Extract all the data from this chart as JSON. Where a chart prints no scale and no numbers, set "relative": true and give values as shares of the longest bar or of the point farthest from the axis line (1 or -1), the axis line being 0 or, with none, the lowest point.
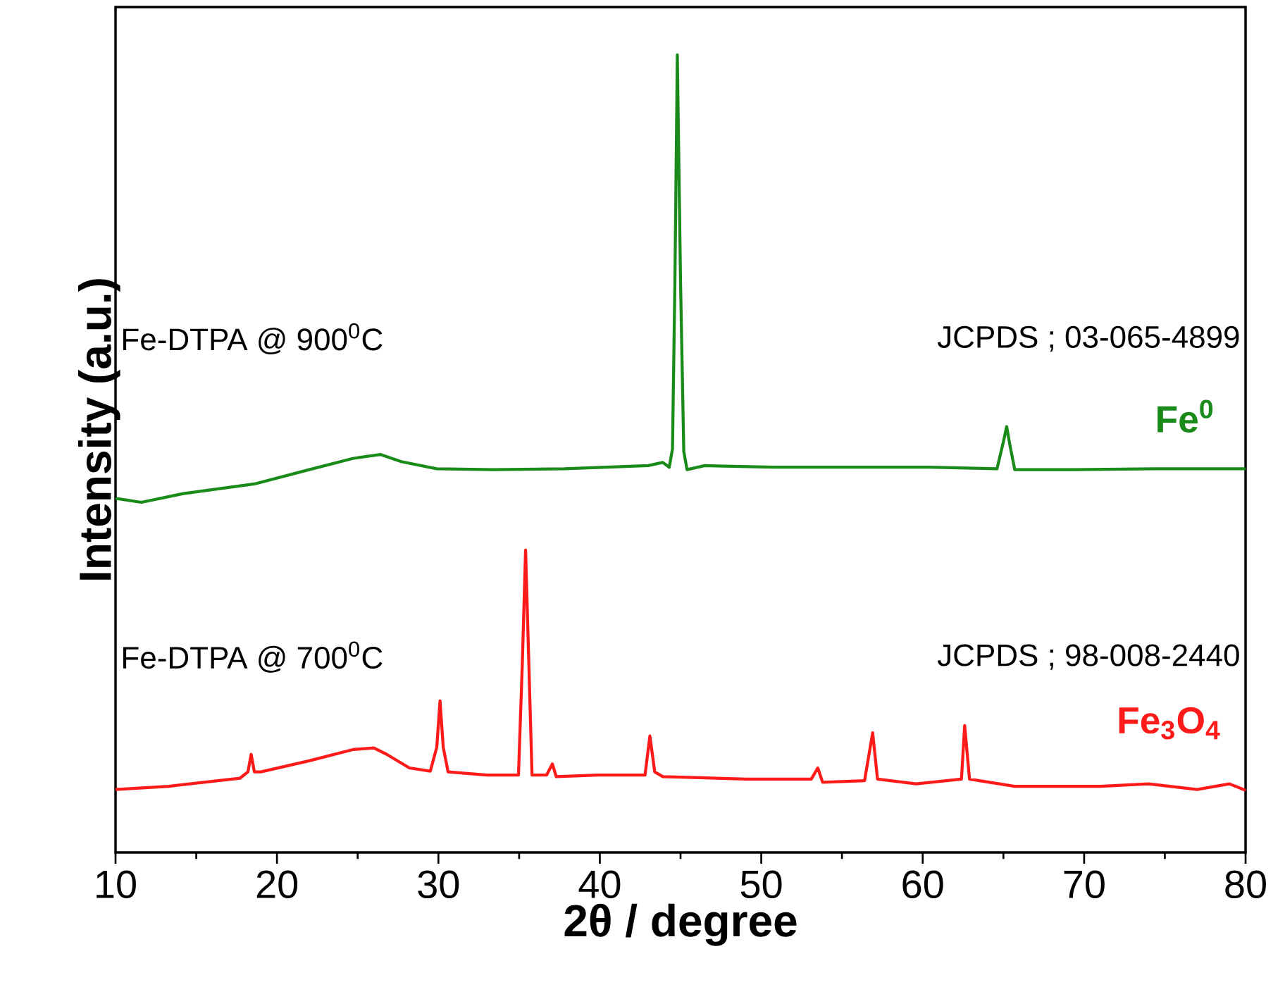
{
  "chart_data": {
    "type": "line",
    "relative": true,
    "xlabel": "2θ / degree",
    "ylabel": "Intensity (a.u.)",
    "xlim": [
      10,
      80
    ],
    "xticks": [
      10,
      20,
      30,
      40,
      50,
      60,
      70,
      80
    ],
    "annotations": [
      "Fe-DTPA @ 900$^{0}$C",
      "JCPDS ; 03-065-4899",
      "Fe$^{0}$",
      "Fe-DTPA @ 700$^{0}$C",
      "JCPDS ; 98-008-2440",
      "Fe$_{3}$O$_{4}$"
    ],
    "series": [
      {
        "color": "#1a8a1a",
        "x": [
          10,
          11.6,
          14.2,
          18.6,
          22.0,
          24.7,
          26.4,
          27.7,
          29.9,
          33.4,
          37.8,
          43.0,
          43.9,
          44.3,
          44.5,
          44.65,
          44.8,
          45.0,
          45.2,
          45.4,
          46.5,
          50.8,
          55.2,
          60.4,
          64.6,
          65.0,
          65.2,
          65.4,
          65.7,
          69.2,
          74.4,
          80
        ],
        "values": [
          0.444,
          0.439,
          0.45,
          0.462,
          0.48,
          0.494,
          0.499,
          0.49,
          0.481,
          0.48,
          0.481,
          0.485,
          0.489,
          0.483,
          0.506,
          0.714,
          1,
          0.714,
          0.503,
          0.48,
          0.485,
          0.483,
          0.483,
          0.483,
          0.481,
          0.515,
          0.534,
          0.511,
          0.48,
          0.48,
          0.481,
          0.481
        ]
      },
      {
        "color": "#ff1a1a",
        "x": [
          10,
          13.3,
          17.7,
          18.2,
          18.4,
          18.6,
          19.0,
          22.0,
          24.7,
          26.0,
          26.8,
          28.2,
          29.5,
          29.9,
          30.1,
          30.3,
          30.6,
          33.0,
          34.96,
          35.2,
          35.4,
          35.6,
          35.8,
          36.7,
          37.06,
          37.3,
          39.9,
          42.8,
          43.1,
          43.4,
          43.9,
          49.1,
          53.1,
          53.5,
          53.8,
          56.4,
          56.9,
          57.2,
          59.6,
          62.4,
          62.6,
          62.9,
          65.7,
          71.0,
          74.0,
          77.0,
          79.0,
          80
        ],
        "values": [
          0.079,
          0.083,
          0.093,
          0.101,
          0.123,
          0.101,
          0.101,
          0.115,
          0.129,
          0.131,
          0.123,
          0.106,
          0.102,
          0.132,
          0.19,
          0.132,
          0.101,
          0.097,
          0.097,
          0.238,
          0.379,
          0.238,
          0.097,
          0.097,
          0.111,
          0.095,
          0.097,
          0.097,
          0.146,
          0.101,
          0.095,
          0.092,
          0.092,
          0.106,
          0.088,
          0.09,
          0.15,
          0.092,
          0.086,
          0.092,
          0.159,
          0.092,
          0.083,
          0.083,
          0.086,
          0.079,
          0.086,
          0.078
        ]
      }
    ]
  }
}
